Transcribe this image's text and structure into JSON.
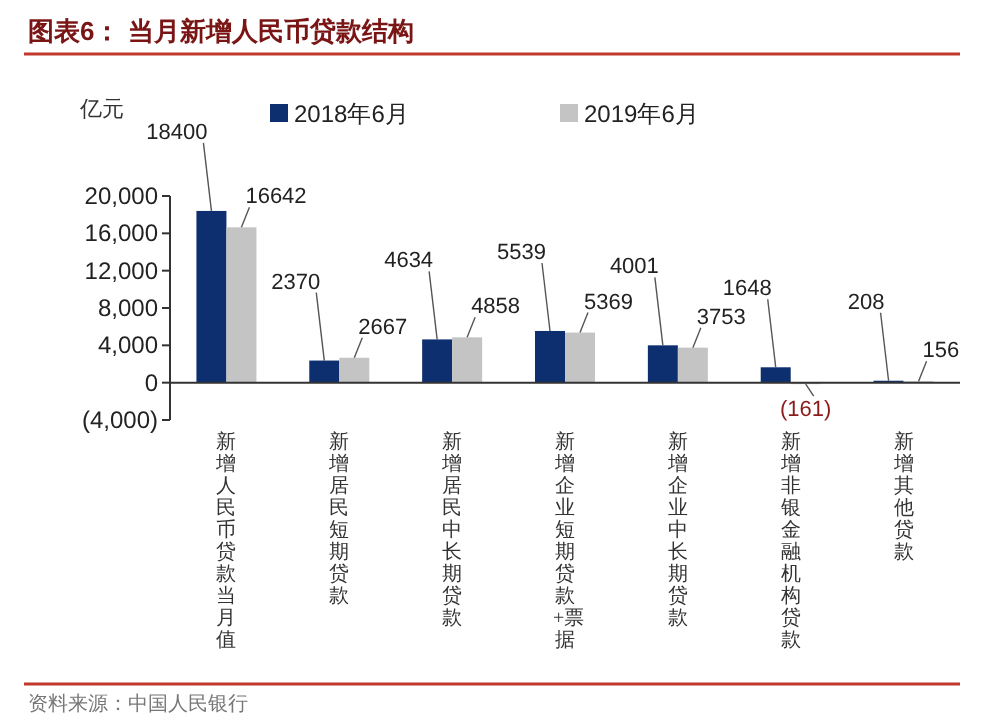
{
  "chart_data": {
    "type": "bar",
    "title": "图表6：  当月新增人民币贷款结构",
    "ylabel": "亿元",
    "categories": [
      "新增人民币贷款当月值",
      "新增居民短期贷款",
      "新增居民中长期贷款",
      "新增企业短期贷款+票据",
      "新增企业中长期贷款",
      "新增非银金融机构贷款",
      "新增其他贷款"
    ],
    "series": [
      {
        "name": "2018年6月",
        "color": "#0d2f6f",
        "values": [
          18400,
          2370,
          4634,
          5539,
          4001,
          1648,
          208
        ],
        "value_labels": [
          "18400",
          "2370",
          "4634",
          "5539",
          "4001",
          "1648",
          "208"
        ]
      },
      {
        "name": "2019年6月",
        "color": "#c4c4c4",
        "values": [
          16642,
          2667,
          4858,
          5369,
          3753,
          -161,
          156
        ],
        "value_labels": [
          "16642",
          "2667",
          "4858",
          "5369",
          "3753",
          "(161)",
          "156"
        ]
      }
    ],
    "ylim": [
      -4000,
      20000
    ],
    "yticks": [
      {
        "value": -4000,
        "label": "(4,000)"
      },
      0,
      {
        "value": 4000,
        "label": "4,000"
      },
      {
        "value": 8000,
        "label": "8,000"
      },
      {
        "value": 12000,
        "label": "12,000"
      },
      {
        "value": 16000,
        "label": "16,000"
      },
      {
        "value": 20000,
        "label": "20,000"
      }
    ],
    "legend": "top",
    "grid": false,
    "annotations": [
      "资料来源：中国人民银行"
    ]
  }
}
